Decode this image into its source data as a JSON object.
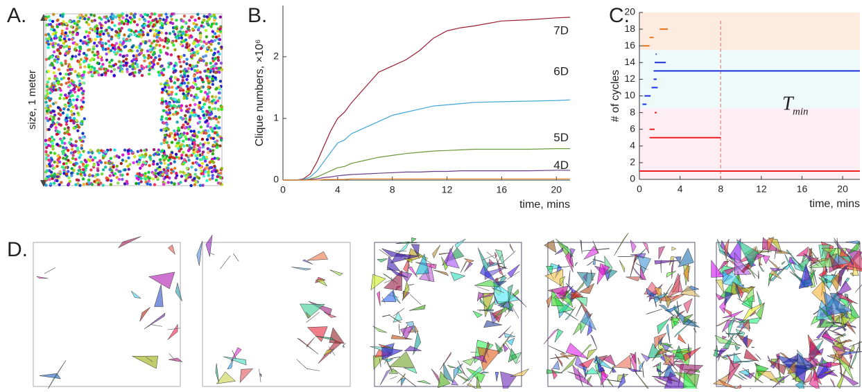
{
  "panels": {
    "a": {
      "label": "A.",
      "axis_label": "size, 1 meter"
    },
    "d": {
      "label": "D."
    }
  },
  "chart_data": [
    {
      "type": "line",
      "panel_label": "B.",
      "ylabel": "Clique numbers, ×10⁶",
      "xlabel": "time, mins",
      "xlim": [
        0,
        21
      ],
      "xticks": [
        0,
        4,
        8,
        12,
        16,
        20
      ],
      "ylim": [
        0,
        2.83
      ],
      "yticks": [
        0,
        1,
        2
      ],
      "x": [
        0,
        1,
        1.5,
        2,
        2.5,
        3,
        3.5,
        4,
        4.5,
        5,
        6,
        7,
        8,
        9,
        10,
        11,
        12,
        13,
        14,
        16,
        18,
        20,
        21
      ],
      "series": [
        {
          "name": "7D",
          "color": "#9b1b30",
          "values": [
            0,
            0,
            0.02,
            0.1,
            0.3,
            0.55,
            0.8,
            1.0,
            1.1,
            1.25,
            1.5,
            1.75,
            1.85,
            1.95,
            2.1,
            2.3,
            2.42,
            2.47,
            2.5,
            2.58,
            2.6,
            2.63,
            2.64
          ]
        },
        {
          "name": "6D",
          "color": "#3fa7d6",
          "values": [
            0,
            0,
            0.01,
            0.05,
            0.15,
            0.3,
            0.45,
            0.6,
            0.65,
            0.75,
            0.85,
            0.95,
            1.05,
            1.1,
            1.15,
            1.2,
            1.22,
            1.24,
            1.26,
            1.27,
            1.28,
            1.29,
            1.3
          ]
        },
        {
          "name": "5D",
          "color": "#6a9a3a",
          "values": [
            0,
            0,
            0,
            0.02,
            0.05,
            0.1,
            0.15,
            0.2,
            0.22,
            0.27,
            0.32,
            0.37,
            0.4,
            0.43,
            0.45,
            0.47,
            0.48,
            0.49,
            0.5,
            0.5,
            0.5,
            0.51,
            0.51
          ]
        },
        {
          "name": "4D",
          "color": "#6b3a8c",
          "values": [
            0,
            0,
            0,
            0.01,
            0.02,
            0.04,
            0.05,
            0.07,
            0.08,
            0.09,
            0.1,
            0.11,
            0.12,
            0.13,
            0.13,
            0.14,
            0.14,
            0.15,
            0.15,
            0.15,
            0.15,
            0.16,
            0.16
          ]
        },
        {
          "color": "#e8892b",
          "values": [
            0,
            0,
            0,
            0,
            0,
            0.01,
            0.01,
            0.01,
            0.01,
            0.02,
            0.02,
            0.02,
            0.02,
            0.02,
            0.02,
            0.02,
            0.02,
            0.02,
            0.02,
            0.02,
            0.02,
            0.02,
            0.02
          ]
        }
      ]
    },
    {
      "type": "barcode",
      "panel_label": "C.",
      "ylabel": "# of cycles",
      "xlabel": "time, mins",
      "xlim": [
        0,
        21.7
      ],
      "xticks": [
        0,
        4,
        8,
        12,
        16,
        20
      ],
      "ylim": [
        0,
        20
      ],
      "yticks": [
        0,
        2,
        4,
        6,
        8,
        10,
        12,
        14,
        16,
        18,
        20
      ],
      "bands": [
        {
          "from": 0,
          "to": 8.5,
          "color": "#fdeef4"
        },
        {
          "from": 8.5,
          "to": 15.5,
          "color": "#eefafa"
        },
        {
          "from": 15.5,
          "to": 20,
          "color": "#fdebdf"
        }
      ],
      "vline": {
        "x": 8,
        "color": "#e07070",
        "label": "T",
        "label_sub": "min"
      },
      "series": [
        {
          "color": "#e8751a",
          "values": [
            16,
            17,
            18
          ],
          "starts": [
            0.3,
            1.0,
            2.0
          ],
          "ends": [
            1.0,
            1.4,
            2.8
          ]
        },
        {
          "color": "#1a2ee0",
          "values": [
            15,
            14,
            13,
            12,
            11,
            10,
            9
          ],
          "starts": [
            1.6,
            1.5,
            1.4,
            1.4,
            1.2,
            0.5,
            0.3
          ],
          "ends": [
            1.7,
            2.6,
            21.7,
            1.7,
            1.8,
            1.1,
            0.7
          ]
        },
        {
          "color": "#ee1c1c",
          "values": [
            8,
            6,
            5,
            1
          ],
          "starts": [
            1.5,
            1.0,
            1.0,
            0
          ],
          "ends": [
            1.7,
            1.5,
            8,
            21.7
          ]
        }
      ]
    }
  ]
}
